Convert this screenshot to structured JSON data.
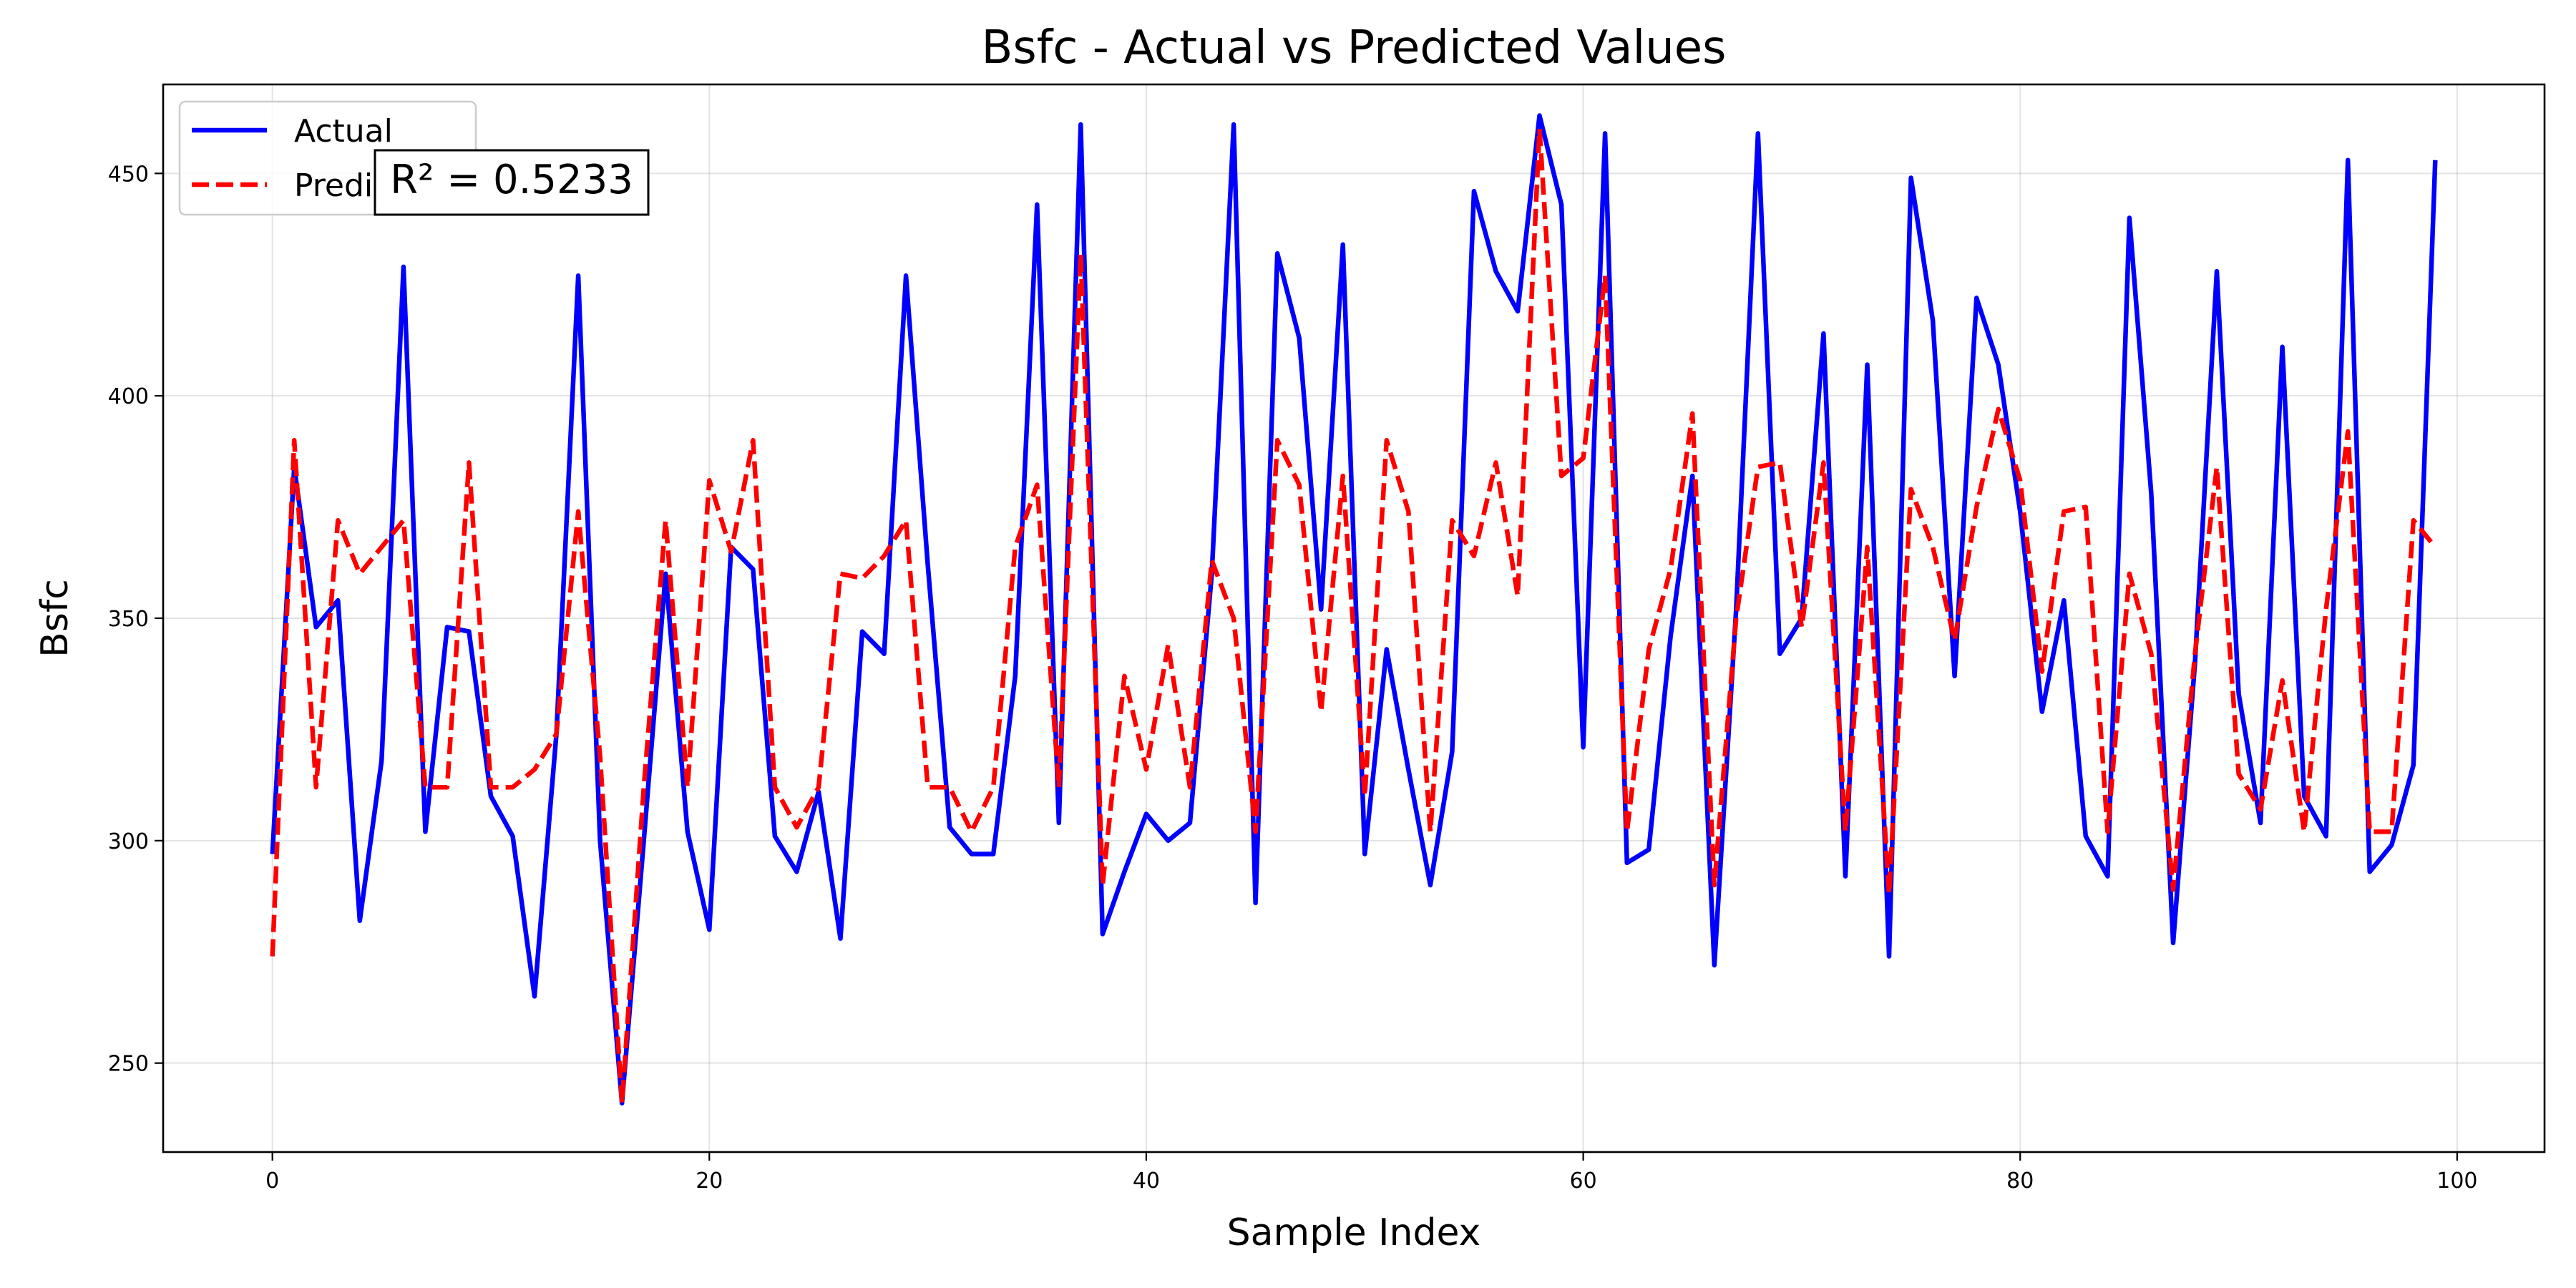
{
  "chart_data": {
    "type": "line",
    "title": "Bsfc - Actual vs Predicted Values",
    "xlabel": "Sample Index",
    "ylabel": "Bsfc",
    "xlim": [
      -5,
      104
    ],
    "ylim": [
      230,
      470
    ],
    "xticks": [
      0,
      20,
      40,
      60,
      80,
      100
    ],
    "yticks": [
      250,
      300,
      350,
      400,
      450
    ],
    "grid": true,
    "legend_position": "top-left",
    "annotation": "R² = 0.5233",
    "x": [
      0,
      1,
      2,
      3,
      4,
      5,
      6,
      7,
      8,
      9,
      10,
      11,
      12,
      13,
      14,
      15,
      16,
      17,
      18,
      19,
      20,
      21,
      22,
      23,
      24,
      25,
      26,
      27,
      28,
      29,
      30,
      31,
      32,
      33,
      34,
      35,
      36,
      37,
      38,
      39,
      40,
      41,
      42,
      43,
      44,
      45,
      46,
      47,
      48,
      49,
      50,
      51,
      52,
      53,
      54,
      55,
      56,
      57,
      58,
      59,
      60,
      61,
      62,
      63,
      64,
      65,
      66,
      67,
      68,
      69,
      70,
      71,
      72,
      73,
      74,
      75,
      76,
      77,
      78,
      79,
      80,
      81,
      82,
      83,
      84,
      85,
      86,
      87,
      88,
      89,
      90,
      91,
      92,
      93,
      94,
      95,
      96,
      97,
      98,
      99
    ],
    "series": [
      {
        "name": "Actual",
        "color": "#0000ff",
        "style": "solid",
        "values": [
          297,
          384,
          348,
          354,
          282,
          318,
          429,
          302,
          348,
          347,
          310,
          301,
          265,
          324,
          427,
          300,
          241,
          300,
          360,
          302,
          280,
          366,
          361,
          301,
          293,
          311,
          278,
          347,
          342,
          427,
          362,
          303,
          297,
          297,
          337,
          443,
          304,
          461,
          279,
          293,
          306,
          300,
          304,
          360,
          461,
          286,
          432,
          413,
          352,
          434,
          297,
          343,
          316,
          290,
          320,
          446,
          428,
          419,
          463,
          443,
          321,
          459,
          295,
          298,
          346,
          382,
          272,
          352,
          459,
          342,
          350,
          414,
          292,
          407,
          274,
          449,
          417,
          337,
          422,
          407,
          374,
          329,
          354,
          301,
          292,
          440,
          378,
          277,
          340,
          428,
          333,
          304,
          411,
          310,
          301,
          453,
          293,
          299,
          317,
          453
        ]
      },
      {
        "name": "Predicted",
        "color": "#ff0000",
        "style": "dashed",
        "values": [
          274,
          390,
          312,
          372,
          360,
          366,
          372,
          312,
          312,
          385,
          312,
          312,
          316,
          324,
          374,
          319,
          241,
          312,
          372,
          312,
          381,
          365,
          390,
          312,
          303,
          312,
          360,
          359,
          364,
          372,
          312,
          312,
          302,
          312,
          366,
          380,
          312,
          432,
          290,
          337,
          316,
          344,
          312,
          363,
          350,
          302,
          390,
          380,
          329,
          382,
          310,
          390,
          374,
          302,
          372,
          364,
          385,
          355,
          460,
          382,
          386,
          427,
          302,
          343,
          361,
          396,
          290,
          350,
          384,
          385,
          348,
          385,
          302,
          366,
          288,
          379,
          366,
          345,
          375,
          397,
          381,
          338,
          374,
          375,
          302,
          360,
          342,
          289,
          342,
          384,
          315,
          307,
          336,
          302,
          352,
          392,
          302,
          302,
          372,
          366
        ]
      }
    ]
  }
}
